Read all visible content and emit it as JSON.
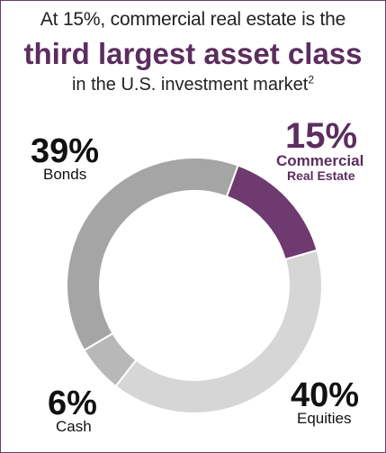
{
  "title": {
    "line1": "At 15%, commercial real estate is the",
    "line2": "third largest asset class",
    "line3": "in the U.S. investment market",
    "footnote": "2"
  },
  "chart_data": {
    "type": "pie",
    "variant": "donut",
    "slices": [
      {
        "label": "Commercial Real Estate",
        "label_line1": "Commercial",
        "label_line2": "Real Estate",
        "value": 15,
        "value_label": "15%",
        "color": "#6e3a6f"
      },
      {
        "label": "Equities",
        "value": 40,
        "value_label": "40%",
        "color": "#d6d6d6"
      },
      {
        "label": "Cash",
        "value": 6,
        "value_label": "6%",
        "color": "#b8b8b8"
      },
      {
        "label": "Bonds",
        "value": 39,
        "value_label": "39%",
        "color": "#a5a5a5"
      }
    ]
  },
  "colors": {
    "accent": "#5c2d5e",
    "border": "#6b3a6b",
    "text": "#222222"
  }
}
